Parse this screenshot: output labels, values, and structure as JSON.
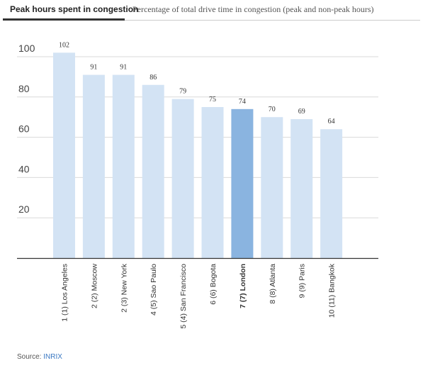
{
  "tabs": {
    "active_label": "Peak hours spent in congestion",
    "inactive_label": "Percentage of total drive time in congestion (peak and non-peak hours)"
  },
  "source": {
    "prefix": "Source:",
    "link": "INRIX"
  },
  "colors": {
    "bar": "#d3e3f4",
    "highlight": "#8ab4e0",
    "grid": "#d9d9d9",
    "axis": "#333333"
  },
  "chart_data": {
    "type": "bar",
    "categories": [
      "1 (1) Los Angeles",
      "2 (2) Moscow",
      "2 (3) New York",
      "4 (5) Sao Paulo",
      "5 (4) San Francisco",
      "6 (6) Bogota",
      "7 (7) London",
      "8 (8) Atlanta",
      "9 (9) Paris",
      "10 (11) Bangkok"
    ],
    "values": [
      102,
      91,
      91,
      86,
      79,
      75,
      74,
      70,
      69,
      64
    ],
    "highlighted": "7 (7) London",
    "yticks": [
      20,
      40,
      60,
      80,
      100
    ],
    "ylim": [
      0,
      105
    ],
    "grid": true,
    "title": "",
    "xlabel": "",
    "ylabel": ""
  }
}
